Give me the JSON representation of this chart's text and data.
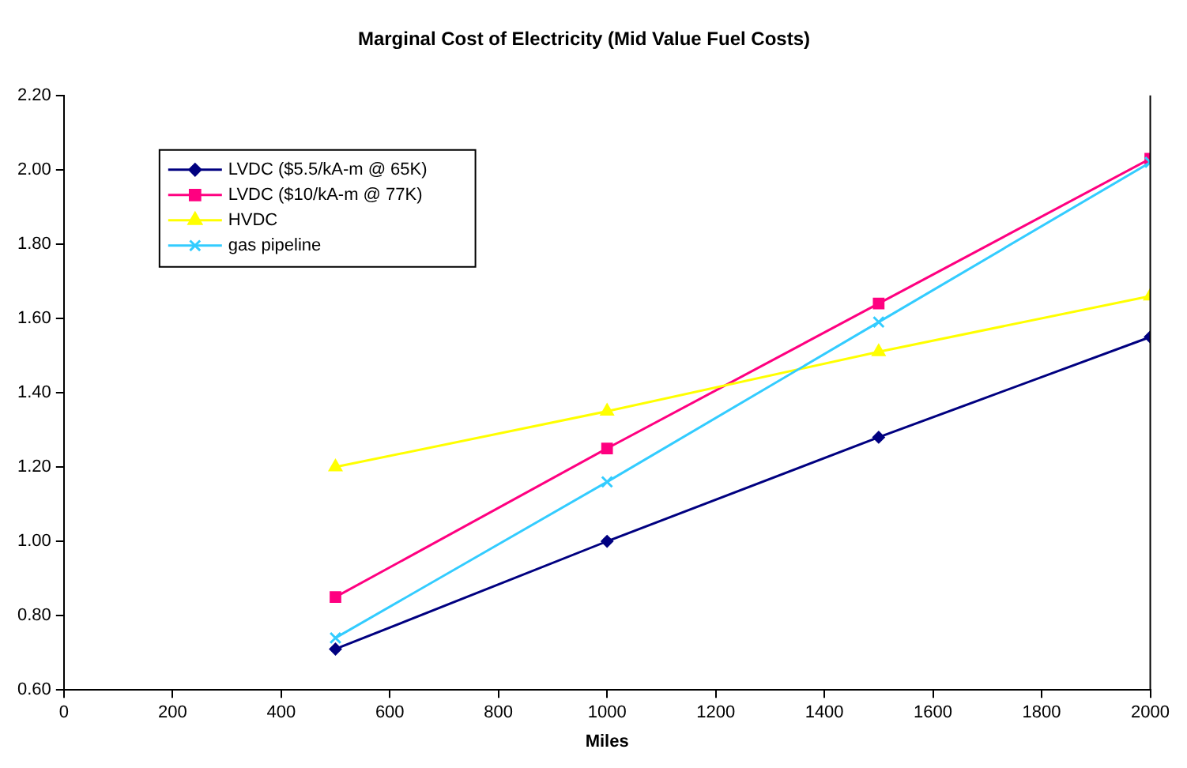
{
  "chart_data": {
    "type": "line",
    "title": "Marginal Cost of Electricity (Mid Value Fuel Costs)",
    "xlabel": "Miles",
    "x": [
      500,
      1000,
      1500,
      2000
    ],
    "series": [
      {
        "name": "LVDC ($5.5/kA-m @ 65K)",
        "color": "#000080",
        "marker": "diamond",
        "values": [
          0.71,
          1.0,
          1.28,
          1.55
        ]
      },
      {
        "name": "LVDC ($10/kA-m @ 77K)",
        "color": "#ff0080",
        "marker": "square",
        "values": [
          0.85,
          1.25,
          1.64,
          2.03
        ]
      },
      {
        "name": "HVDC",
        "color": "#ffff00",
        "marker": "triangle",
        "values": [
          1.2,
          1.35,
          1.51,
          1.66
        ]
      },
      {
        "name": "gas pipeline",
        "color": "#33ccff",
        "marker": "cross",
        "values": [
          0.74,
          1.16,
          1.59,
          2.02
        ]
      }
    ],
    "xlim": [
      0,
      2000
    ],
    "xticks": [
      0,
      200,
      400,
      600,
      800,
      1000,
      1200,
      1400,
      1600,
      1800,
      2000
    ],
    "ylim": [
      0.6,
      2.2
    ],
    "yticks": [
      {
        "value": 0.6,
        "label": "0.60"
      },
      {
        "value": 0.8,
        "label": "0.80"
      },
      {
        "value": 1.0,
        "label": "1.00"
      },
      {
        "value": 1.2,
        "label": "1.20"
      },
      {
        "value": 1.4,
        "label": "1.40"
      },
      {
        "value": 1.6,
        "label": "1.60"
      },
      {
        "value": 1.8,
        "label": "1.80"
      },
      {
        "value": 2.0,
        "label": "2.00"
      },
      {
        "value": 2.2,
        "label": "2.20"
      }
    ],
    "grid": false,
    "legend": "top left",
    "line_style": "solid"
  }
}
